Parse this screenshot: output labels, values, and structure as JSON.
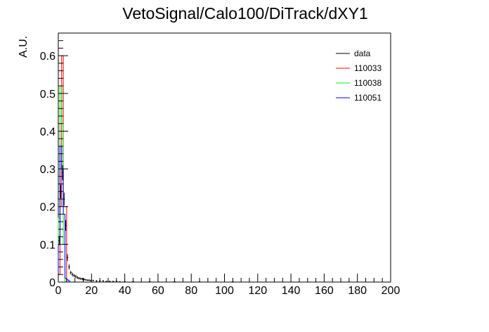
{
  "chart_data": {
    "type": "histogram",
    "title": "VetoSignal/Calo100/DiTrack/dXY1",
    "xlabel": "",
    "ylabel": "A.U.",
    "xlim": [
      0,
      200
    ],
    "ylim": [
      0,
      0.66
    ],
    "x_ticks": [
      0,
      20,
      40,
      60,
      80,
      100,
      120,
      140,
      160,
      180,
      200
    ],
    "x_tick_labels": [
      "0",
      "20",
      "40",
      "60",
      "80",
      "100",
      "120",
      "140",
      "160",
      "180",
      "200"
    ],
    "y_ticks": [
      0,
      0.1,
      0.2,
      0.3,
      0.4,
      0.5,
      0.6
    ],
    "y_tick_labels": [
      "0",
      "0.1",
      "0.2",
      "0.3",
      "0.4",
      "0.5",
      "0.6"
    ],
    "grid": false,
    "legend_position": "top-right",
    "series": [
      {
        "name": "data",
        "color": "#000000",
        "style": "errorbar",
        "x": [
          0.5,
          1.5,
          2.5,
          3.5,
          4.5,
          5.5,
          6.5,
          7.5,
          8.5,
          9.5,
          10.5,
          11.5,
          12.5,
          13.5,
          14.5,
          15.5,
          16.5,
          17.5,
          18.5,
          19.5,
          21,
          23,
          25,
          27,
          29,
          31,
          33,
          35,
          37,
          40,
          45,
          55,
          70,
          85,
          105
        ],
        "values": [
          0.11,
          0.24,
          0.29,
          0.22,
          0.15,
          0.065,
          0.04,
          0.025,
          0.02,
          0.017,
          0.015,
          0.012,
          0.01,
          0.009,
          0.008,
          0.007,
          0.006,
          0.005,
          0.005,
          0.004,
          0.004,
          0.003,
          0.003,
          0.003,
          0.002,
          0.002,
          0.002,
          0.002,
          0.001,
          0.001,
          0.001,
          0.001,
          0.001,
          0.001,
          0.001
        ],
        "errors": [
          0.012,
          0.018,
          0.02,
          0.017,
          0.014,
          0.009,
          0.007,
          0.005,
          0.005,
          0.004,
          0.004,
          0.004,
          0.003,
          0.003,
          0.003,
          0.003,
          0.002,
          0.002,
          0.002,
          0.002,
          0.002,
          0.002,
          0.002,
          0.002,
          0.001,
          0.001,
          0.001,
          0.001,
          0.001,
          0.001,
          0.001,
          0.001,
          0.001,
          0.001,
          0.001
        ]
      },
      {
        "name": "110033",
        "color": "#ff0000",
        "style": "hist",
        "bins": [
          [
            0,
            1,
            0.02
          ],
          [
            1,
            2,
            0.2
          ],
          [
            2,
            3,
            0.6
          ],
          [
            3,
            4,
            0.2
          ],
          [
            4,
            5,
            0.2
          ],
          [
            5,
            6,
            0.0
          ]
        ]
      },
      {
        "name": "110038",
        "color": "#00ee00",
        "style": "hist",
        "bins": [
          [
            0,
            1,
            0.17
          ],
          [
            1,
            2,
            0.52
          ],
          [
            2,
            3,
            0.42
          ],
          [
            3,
            4,
            0.1
          ],
          [
            4,
            5,
            0.0
          ]
        ]
      },
      {
        "name": "110051",
        "color": "#0000ff",
        "style": "hist",
        "bins": [
          [
            0,
            1,
            0.1
          ],
          [
            1,
            2,
            0.36
          ],
          [
            2,
            3,
            0.3
          ],
          [
            3,
            4,
            0.18
          ],
          [
            4,
            5,
            0.01
          ],
          [
            5,
            6,
            0.006
          ],
          [
            6,
            7,
            0.003
          ],
          [
            7,
            8,
            0.0
          ]
        ]
      }
    ]
  }
}
